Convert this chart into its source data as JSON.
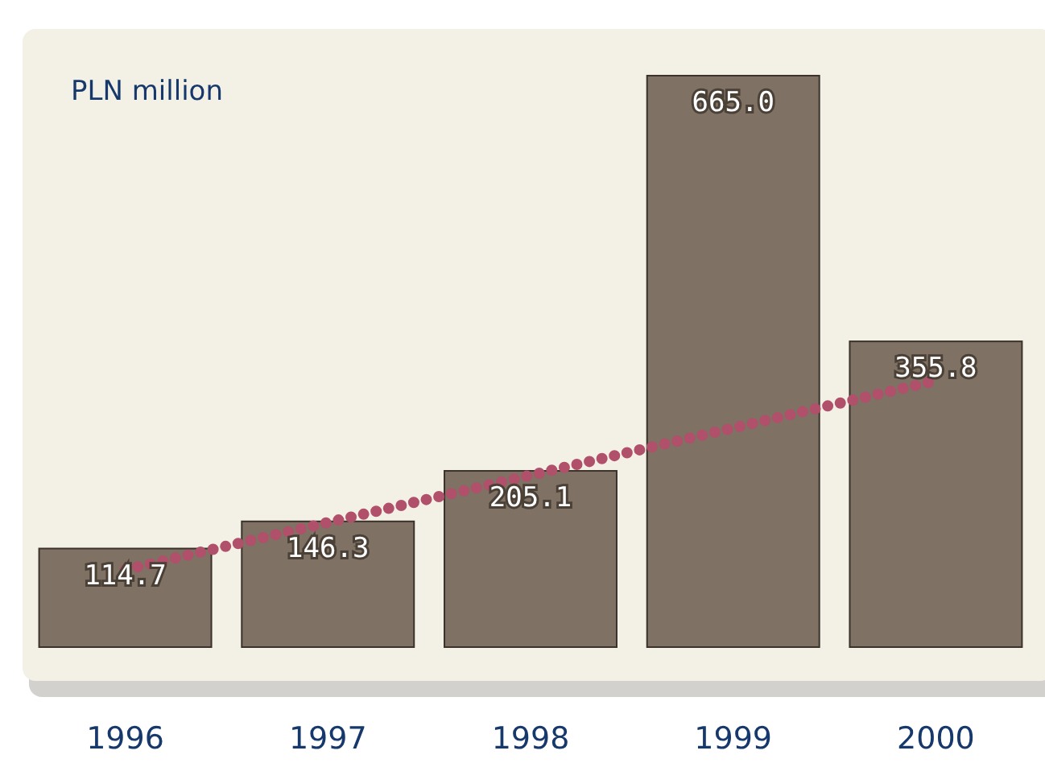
{
  "chart_data": {
    "type": "bar",
    "ylabel": "PLN million",
    "categories": [
      "1996",
      "1997",
      "1998",
      "1999",
      "2000"
    ],
    "series": [
      {
        "color": "#7f7163",
        "values": [
          114.7,
          146.3,
          205.1,
          665.0,
          355.8
        ],
        "value_labels": [
          "114.7",
          "146.3",
          "205.1",
          "665.0",
          "355.8"
        ]
      },
      {
        "type": "line",
        "color": "#b0506a",
        "values": [
          90,
          145,
          200,
          255,
          310
        ],
        "line_style": "dotted"
      }
    ]
  }
}
